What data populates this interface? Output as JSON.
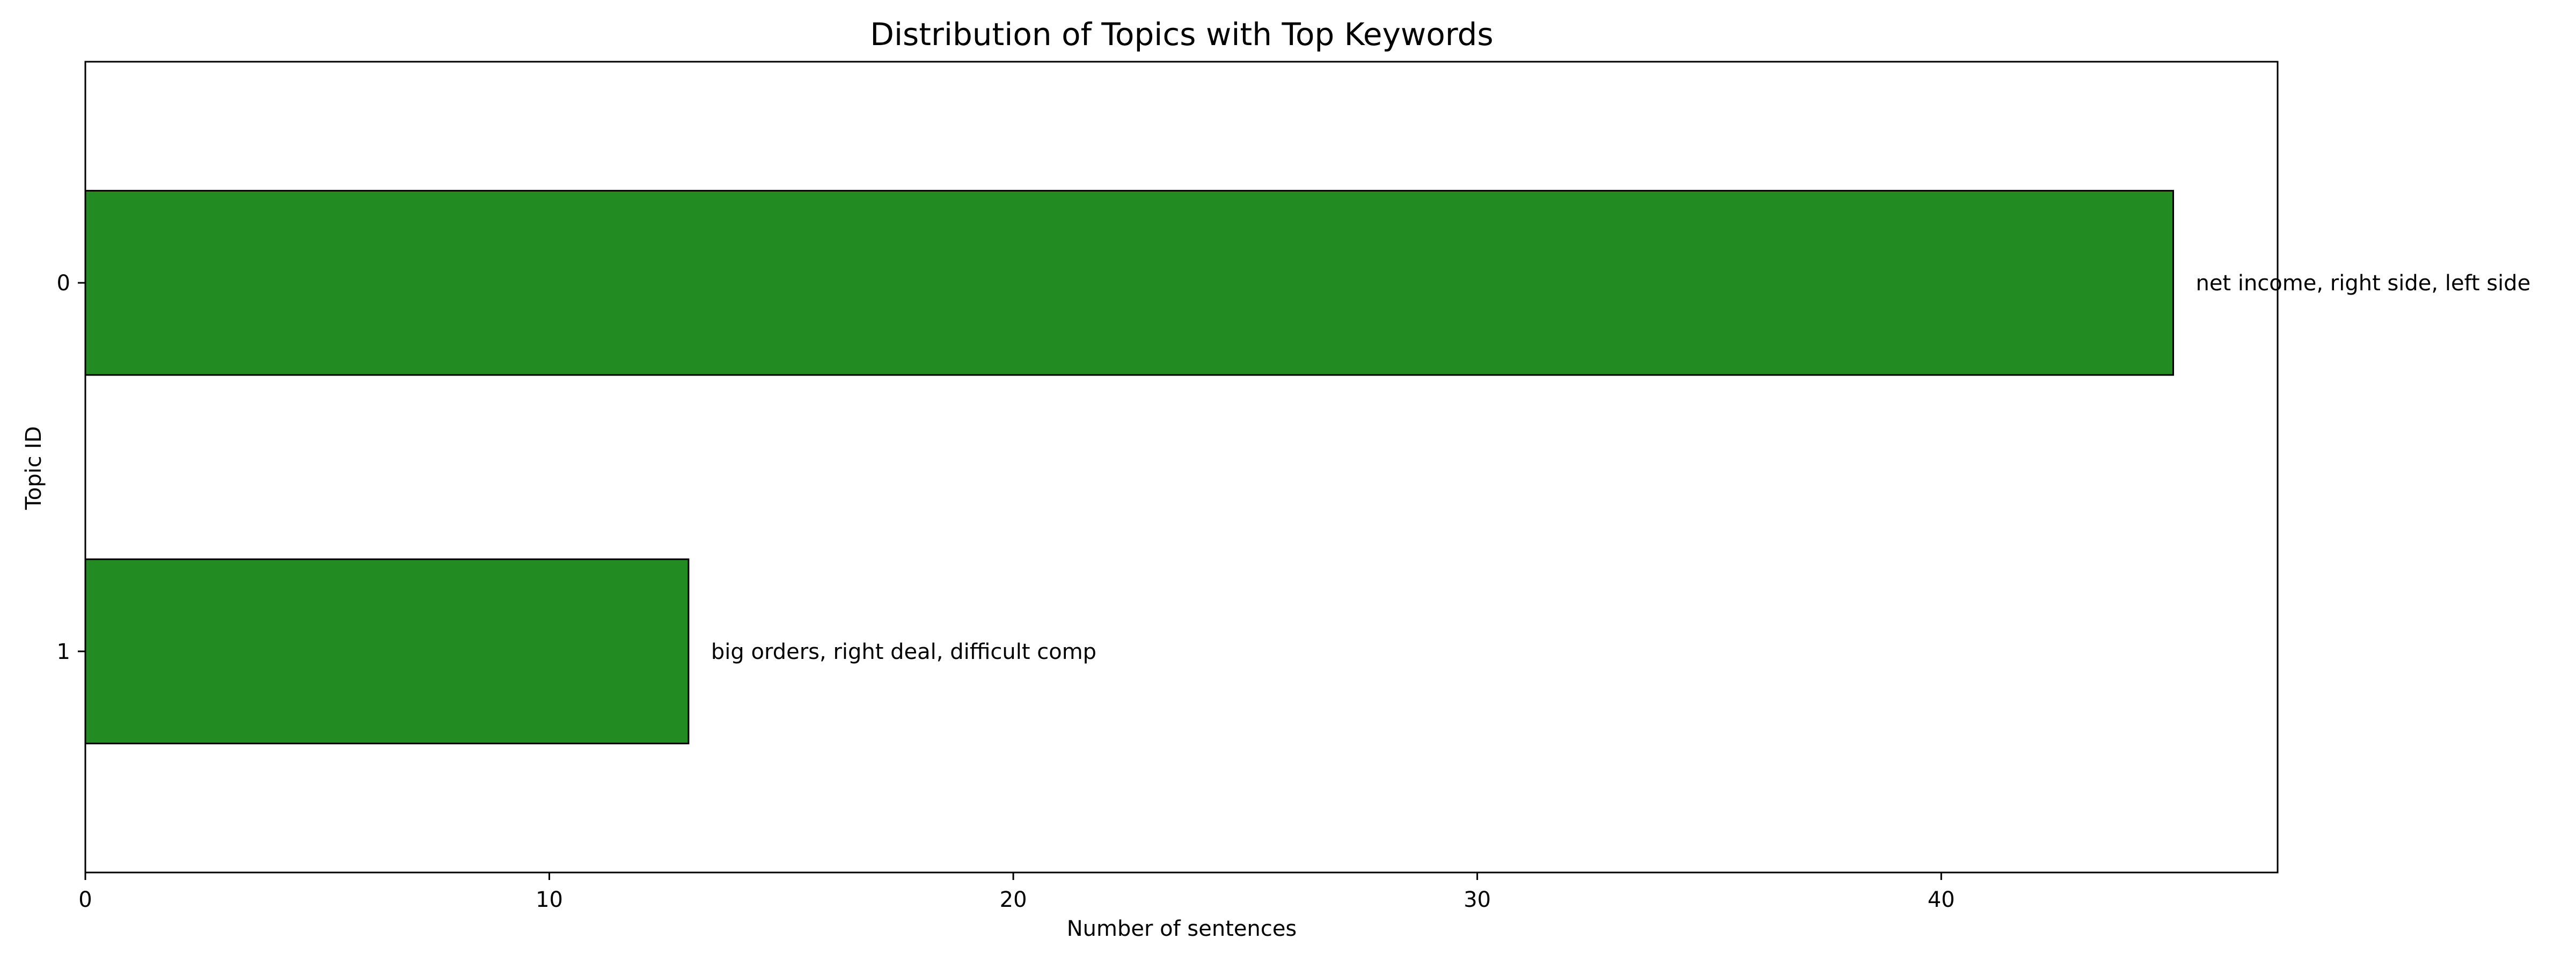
{
  "chart_data": {
    "type": "bar",
    "orientation": "horizontal",
    "title": "Distribution of Topics with Top Keywords",
    "xlabel": "Number of sentences",
    "ylabel": "Topic ID",
    "categories": [
      "0",
      "1"
    ],
    "values": [
      45,
      13
    ],
    "bar_labels": [
      "net income, right side, left side",
      "big orders, right deal, difficult comp"
    ],
    "xlim": [
      0,
      47.25
    ],
    "xticks": [
      0,
      10,
      20,
      30,
      40
    ],
    "grid": false,
    "legend": "none",
    "bar_color": "#228b22",
    "bar_edge_color": "#000000"
  }
}
